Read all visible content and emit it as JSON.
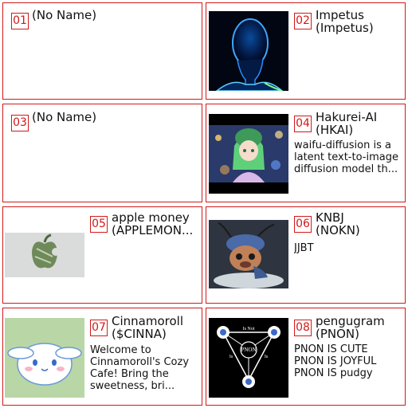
{
  "cards": [
    {
      "num": "01",
      "title": "(No Name)",
      "desc": ""
    },
    {
      "num": "02",
      "title": "Impetus\n(Impetus)",
      "desc": "",
      "thumb": "impetus-image"
    },
    {
      "num": "03",
      "title": "(No Name)",
      "desc": ""
    },
    {
      "num": "04",
      "title": "Hakurei-AI\n(HKAI)",
      "desc": "waifu-diffusion is a latent text-to-image diffusion model th...",
      "thumb": "anime-girl-image"
    },
    {
      "num": "05",
      "title": "apple money\n(APPLEMON...",
      "desc": "",
      "thumb": "apple-money-image"
    },
    {
      "num": "06",
      "title": "KNBJ\n(NOKN)",
      "desc": "JJBT",
      "thumb": "pug-creature-image"
    },
    {
      "num": "07",
      "title": "Cinnamoroll\n($CINNA)",
      "desc": "Welcome to Cinnamoroll's Cozy Cafe! Bring the sweetness, bri...",
      "thumb": "cinnamoroll-image"
    },
    {
      "num": "08",
      "title": "pengugram\n(PNON)",
      "desc": "PNON IS CUTE\nPNON IS JOYFUL\nPNON IS pudgy",
      "thumb": "pnon-diagram-image",
      "diagram_words": [
        "Is Not",
        "PNON",
        "Is",
        "Is"
      ]
    }
  ],
  "colors": {
    "border": "#d11a1a",
    "number": "#d11a1a"
  }
}
